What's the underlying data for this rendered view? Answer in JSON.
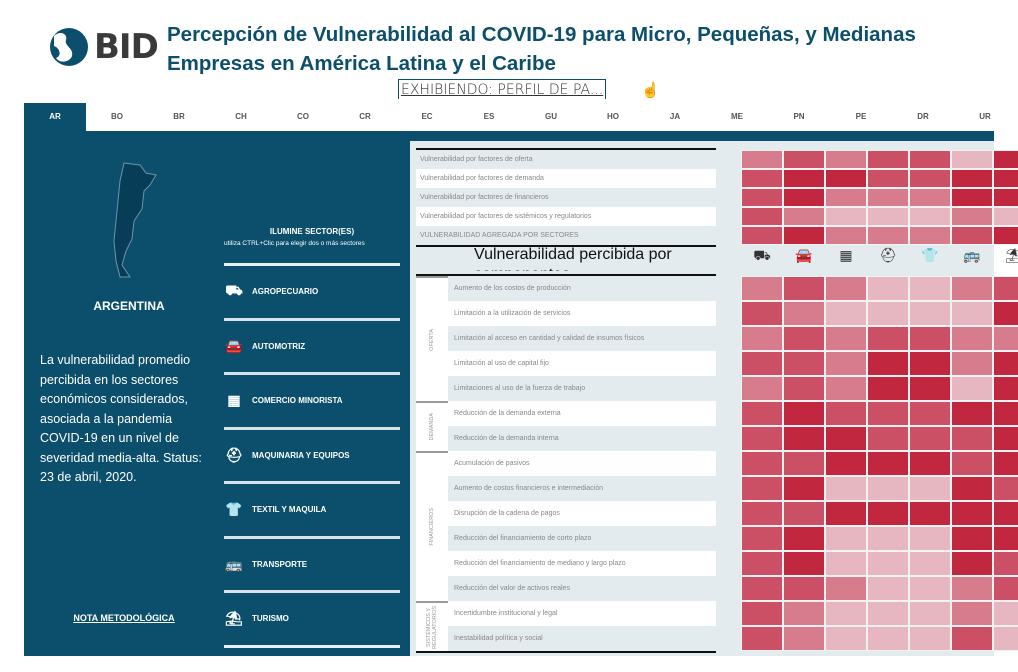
{
  "header": {
    "logo_text": "BID",
    "title": "Percepción de Vulnerabilidad al COVID-19 para Micro, Pequeñas, y Medianas Empresas en América Latina y el Caribe",
    "showing": "EXHIBIENDO: PERFIL DE PA..."
  },
  "tabs": [
    "AR",
    "BO",
    "BR",
    "CH",
    "CO",
    "CR",
    "EC",
    "ES",
    "GU",
    "HO",
    "JA",
    "ME",
    "PN",
    "PE",
    "DR",
    "UR"
  ],
  "active_tab": "AR",
  "country": {
    "name": "ARGENTINA",
    "description": "La vulnerabilidad promedio percibida en los sectores económicos considerados, asociada a la pandemia COVID-19 en un nivel de severidad media-alta. Status: 23 de abril, 2020.",
    "nota": "NOTA METODOLÓGICA"
  },
  "sector_filter": {
    "heading": "ILUMINE SECTOR(ES)",
    "hint": "utiliza CTRL+Clic para elegir dos o más sectores"
  },
  "sectors": [
    {
      "label": "AGROPECUARIO",
      "icon": "tractor-icon",
      "glyph": "⛟"
    },
    {
      "label": "AUTOMOTRIZ",
      "icon": "car-icon",
      "glyph": "🚘"
    },
    {
      "label": "COMERCIO MINORISTA",
      "icon": "store-icon",
      "glyph": "▦"
    },
    {
      "label": "MAQUINARIA Y EQUIPOS",
      "icon": "worker-icon",
      "glyph": "⛑"
    },
    {
      "label": "TEXTIL Y MAQUILA",
      "icon": "shirt-icon",
      "glyph": "👕"
    },
    {
      "label": "TRANSPORTE",
      "icon": "bus-icon",
      "glyph": "🚌"
    },
    {
      "label": "TURISMO",
      "icon": "tourist-icon",
      "glyph": "⛱"
    }
  ],
  "colors": {
    "levels": [
      "#e6b7c0",
      "#d77c8c",
      "#cb5066",
      "#c1273f"
    ],
    "primary": "#0b4f6c"
  },
  "aggregate": {
    "rows": [
      "Vulnerabilidad por factores de oferta",
      "Vulnerabilidad por factores de demanda",
      "Vulnerabilidad por factores de financieros",
      "Vulnerabilidad por factores de sistémicos y regulatorios",
      "VULNERABILIDAD AGREGADA POR SECTORES"
    ],
    "values": [
      [
        2,
        3,
        2,
        3,
        3,
        1,
        4
      ],
      [
        3,
        4,
        4,
        3,
        3,
        4,
        4
      ],
      [
        3,
        4,
        2,
        2,
        2,
        4,
        4
      ],
      [
        3,
        2,
        1,
        1,
        1,
        2,
        1
      ],
      [
        3,
        4,
        2,
        2,
        2,
        3,
        4
      ]
    ]
  },
  "components": {
    "title": "Vulnerabilidad percibida por componentes",
    "groups": [
      {
        "label": "OFERTA",
        "rows": 5
      },
      {
        "label": "DEMANDA",
        "rows": 2
      },
      {
        "label": "FINANCIEROS",
        "rows": 6
      },
      {
        "label": "SISTÉMICOS Y REGULATORIOS",
        "rows": 2
      }
    ],
    "rows": [
      "Aumento de los costos de producción",
      "Limitación a la utilización de servicios",
      "Limitación al acceso en cantidad y calidad de insumos físicos",
      "Limitación al uso de capital fijo",
      "Limitaciones al uso de la fuerza de trabajo",
      "Reducción de la demanda externa",
      "Reducción de la demanda interna",
      "Acumulación de pasivos",
      "Aumento de costos financieros e intermediación",
      "Disrupción de la cadena de pagos",
      "Reducción del financiamiento de corto plazo",
      "Reducción del financiamiento de mediano y largo plazo",
      "Reducción del valor de activos reales",
      "Incertidumbre institucional y legal",
      "Inestabilidad política y social"
    ],
    "values": [
      [
        2,
        3,
        2,
        1,
        1,
        2,
        3
      ],
      [
        3,
        2,
        1,
        1,
        1,
        1,
        4
      ],
      [
        2,
        3,
        2,
        3,
        3,
        2,
        2
      ],
      [
        3,
        3,
        2,
        4,
        4,
        2,
        4
      ],
      [
        2,
        3,
        2,
        4,
        4,
        1,
        4
      ],
      [
        3,
        4,
        3,
        3,
        3,
        4,
        4
      ],
      [
        3,
        4,
        4,
        3,
        3,
        3,
        4
      ],
      [
        3,
        3,
        4,
        4,
        4,
        3,
        4
      ],
      [
        3,
        4,
        1,
        1,
        1,
        4,
        3
      ],
      [
        3,
        3,
        4,
        4,
        4,
        4,
        4
      ],
      [
        3,
        4,
        1,
        1,
        1,
        4,
        4
      ],
      [
        3,
        4,
        1,
        1,
        1,
        4,
        3
      ],
      [
        3,
        3,
        2,
        1,
        1,
        2,
        3
      ],
      [
        3,
        2,
        1,
        1,
        1,
        2,
        1
      ],
      [
        3,
        2,
        1,
        1,
        1,
        3,
        1
      ]
    ]
  }
}
